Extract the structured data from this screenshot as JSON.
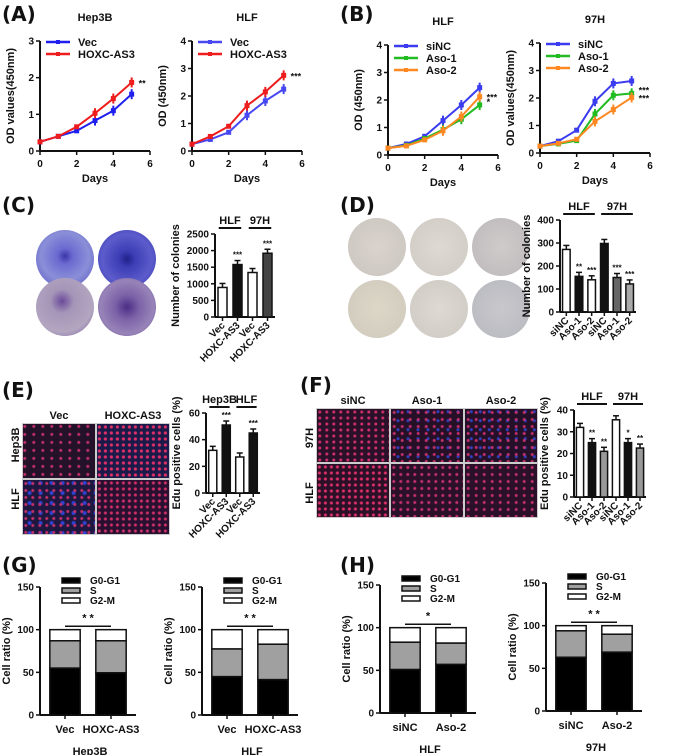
{
  "panels": {
    "A": "(A)",
    "B": "(B)",
    "C": "(C)",
    "D": "(D)",
    "E": "(E)",
    "F": "(F)",
    "G": "(G)",
    "H": "(H)"
  },
  "images": {
    "C": {
      "description": "crystal violet colony plates",
      "rows": 2,
      "cols": 2
    },
    "D": {
      "description": "colony plates",
      "rows": 2,
      "cols": 3
    },
    "E": {
      "col_labels": [
        "Vec",
        "HOXC-AS3"
      ],
      "row_labels": [
        "Hep3B",
        "HLF"
      ]
    },
    "F": {
      "col_labels": [
        "siNC",
        "Aso-1",
        "Aso-2"
      ],
      "row_labels": [
        "97H",
        "HLF"
      ]
    }
  },
  "chart_data": [
    {
      "id": "A1",
      "type": "line",
      "title": "Hep3B",
      "xlabel": "Days",
      "ylabel": "OD values(450nm)",
      "xlim": [
        0,
        6
      ],
      "ylim": [
        0,
        3
      ],
      "xticks": [
        0,
        2,
        4,
        6
      ],
      "yticks": [
        0,
        1,
        2,
        3
      ],
      "x": [
        0,
        1,
        2,
        3,
        4,
        5
      ],
      "series": [
        {
          "name": "Vec",
          "color": "#1f1fef",
          "values": [
            0.25,
            0.4,
            0.55,
            0.83,
            1.1,
            1.55
          ]
        },
        {
          "name": "HOXC-AS3",
          "color": "#ee1c1c",
          "values": [
            0.25,
            0.4,
            0.66,
            1.03,
            1.43,
            1.87
          ]
        }
      ],
      "annotations": [
        "**"
      ],
      "legend": "top-left"
    },
    {
      "id": "A2",
      "type": "line",
      "title": "HLF",
      "xlabel": "Days",
      "ylabel": "OD (450nm)",
      "xlim": [
        0,
        6
      ],
      "ylim": [
        0,
        4
      ],
      "xticks": [
        0,
        2,
        4,
        6
      ],
      "yticks": [
        0,
        1,
        2,
        3,
        4
      ],
      "x": [
        0,
        1,
        2,
        3,
        4,
        5
      ],
      "series": [
        {
          "name": "Vec",
          "color": "#4848f2",
          "values": [
            0.25,
            0.42,
            0.68,
            1.3,
            1.82,
            2.25
          ]
        },
        {
          "name": "HOXC-AS3",
          "color": "#ee1c1c",
          "values": [
            0.25,
            0.53,
            0.9,
            1.65,
            2.15,
            2.75
          ]
        }
      ],
      "annotations": [
        "***"
      ],
      "legend": "top-left"
    },
    {
      "id": "B1",
      "type": "line",
      "title": "HLF",
      "xlabel": "Days",
      "ylabel": "OD (450nm)",
      "xlim": [
        0,
        6
      ],
      "ylim": [
        0,
        4
      ],
      "xticks": [
        0,
        2,
        4,
        6
      ],
      "yticks": [
        0,
        1,
        2,
        3,
        4
      ],
      "x": [
        0,
        1,
        2,
        3,
        4,
        5
      ],
      "series": [
        {
          "name": "siNC",
          "color": "#3b3bf0",
          "values": [
            0.25,
            0.4,
            0.68,
            1.25,
            1.82,
            2.45
          ]
        },
        {
          "name": "Aso-1",
          "color": "#22bb22",
          "values": [
            0.25,
            0.35,
            0.6,
            0.92,
            1.3,
            1.82
          ]
        },
        {
          "name": "Aso-2",
          "color": "#ff8822",
          "values": [
            0.25,
            0.33,
            0.55,
            0.88,
            1.4,
            2.12
          ]
        }
      ],
      "annotations": [
        "*",
        "***"
      ],
      "legend": "top-left"
    },
    {
      "id": "B2",
      "type": "line",
      "title": "97H",
      "xlabel": "Days",
      "ylabel": "OD values(450nm)",
      "xlim": [
        0,
        6
      ],
      "ylim": [
        0,
        4
      ],
      "xticks": [
        0,
        2,
        4,
        6
      ],
      "yticks": [
        0,
        1,
        2,
        3,
        4
      ],
      "x": [
        0,
        1,
        2,
        3,
        4,
        5
      ],
      "series": [
        {
          "name": "siNC",
          "color": "#3b3bf0",
          "values": [
            0.25,
            0.43,
            0.83,
            1.88,
            2.53,
            2.62
          ]
        },
        {
          "name": "Aso-1",
          "color": "#22bb22",
          "values": [
            0.25,
            0.33,
            0.45,
            1.42,
            2.1,
            2.17
          ]
        },
        {
          "name": "Aso-2",
          "color": "#ff8822",
          "values": [
            0.25,
            0.35,
            0.5,
            1.15,
            1.58,
            2.02
          ]
        }
      ],
      "annotations": [
        "***",
        "***"
      ],
      "legend": "top-left"
    },
    {
      "id": "C",
      "type": "bar",
      "ylabel": "Number of colonies",
      "ylim": [
        0,
        2500
      ],
      "yticks": [
        0,
        500,
        1000,
        1500,
        2000,
        2500
      ],
      "groups": [
        "HLF",
        "97H"
      ],
      "categories": [
        "Vec",
        "HOXC-AS3",
        "Vec",
        "HOXC-AS3"
      ],
      "values": [
        890,
        1580,
        1340,
        1920
      ],
      "fills": [
        "#ffffff",
        "#111111",
        "#ffffff",
        "#444444"
      ],
      "annotations": [
        "",
        "***",
        "",
        "***"
      ]
    },
    {
      "id": "D",
      "type": "bar",
      "ylabel": "Number of colonies",
      "ylim": [
        0,
        400
      ],
      "yticks": [
        0,
        100,
        200,
        300,
        400
      ],
      "groups": [
        "HLF",
        "97H"
      ],
      "categories": [
        "siNC",
        "Aso-1",
        "Aso-2",
        "siNC",
        "Aso-1",
        "Aso-2"
      ],
      "values": [
        272,
        155,
        140,
        298,
        150,
        122
      ],
      "fills": [
        "#ffffff",
        "#111111",
        "#ffffff",
        "#111111",
        "#666666",
        "#aaaaaa"
      ],
      "annotations": [
        "",
        "**",
        "***",
        "",
        "***",
        "***"
      ]
    },
    {
      "id": "E",
      "type": "bar",
      "ylabel": "Edu positive cells (%)",
      "ylim": [
        0,
        60
      ],
      "yticks": [
        0,
        20,
        40,
        60
      ],
      "groups": [
        "Hep3B",
        "HLF"
      ],
      "categories": [
        "Vec",
        "HOXC-AS3",
        "Vec",
        "HOXC-AS3"
      ],
      "values": [
        32,
        51,
        27,
        45
      ],
      "fills": [
        "#ffffff",
        "#111111",
        "#ffffff",
        "#111111"
      ],
      "annotations": [
        "",
        "***",
        "",
        "***"
      ]
    },
    {
      "id": "F",
      "type": "bar",
      "ylabel": "Edu positive cells (%)",
      "ylim": [
        0,
        40
      ],
      "yticks": [
        0,
        10,
        20,
        30,
        40
      ],
      "groups": [
        "HLF",
        "97H"
      ],
      "categories": [
        "siNC",
        "Aso-1",
        "Aso-2",
        "siNC",
        "Aso-1",
        "Aso-2"
      ],
      "values": [
        32,
        25,
        21,
        35.5,
        25,
        22.5
      ],
      "fills": [
        "#ffffff",
        "#111111",
        "#999999",
        "#ffffff",
        "#111111",
        "#999999"
      ],
      "annotations": [
        "",
        "**",
        "**",
        "",
        "*",
        "**"
      ]
    },
    {
      "id": "G1",
      "type": "bar",
      "stacked": true,
      "xlabel": "Hep3B",
      "ylabel": "Cell ratio (%)",
      "ylim": [
        0,
        150
      ],
      "yticks": [
        0,
        50,
        100,
        150
      ],
      "categories": [
        "Vec",
        "HOXC-AS3"
      ],
      "series": [
        {
          "name": "G0-G1",
          "color": "#000000",
          "values": [
            55,
            49.5
          ]
        },
        {
          "name": "S",
          "color": "#a0a0a0",
          "values": [
            32,
            37.5
          ]
        },
        {
          "name": "G2-M",
          "color": "#ffffff",
          "values": [
            13,
            13
          ]
        }
      ],
      "annotations": [
        "**"
      ],
      "legend": "top"
    },
    {
      "id": "G2",
      "type": "bar",
      "stacked": true,
      "xlabel": "HLF",
      "ylabel": "Cell ratio (%)",
      "ylim": [
        0,
        150
      ],
      "yticks": [
        0,
        50,
        100,
        150
      ],
      "categories": [
        "Vec",
        "HOXC-AS3"
      ],
      "series": [
        {
          "name": "G0-G1",
          "color": "#000000",
          "values": [
            45,
            41.5
          ]
        },
        {
          "name": "S",
          "color": "#a0a0a0",
          "values": [
            32.5,
            41.5
          ]
        },
        {
          "name": "G2-M",
          "color": "#ffffff",
          "values": [
            22.5,
            17
          ]
        }
      ],
      "annotations": [
        "**"
      ],
      "legend": "top"
    },
    {
      "id": "H1",
      "type": "bar",
      "stacked": true,
      "xlabel": "HLF",
      "ylabel": "Cell ratio (%)",
      "ylim": [
        0,
        150
      ],
      "yticks": [
        0,
        50,
        100,
        150
      ],
      "categories": [
        "siNC",
        "Aso-2"
      ],
      "series": [
        {
          "name": "G0-G1",
          "color": "#000000",
          "values": [
            51,
            57
          ]
        },
        {
          "name": "S",
          "color": "#a0a0a0",
          "values": [
            32,
            25
          ]
        },
        {
          "name": "G2-M",
          "color": "#ffffff",
          "values": [
            17,
            18
          ]
        }
      ],
      "annotations": [
        "*"
      ],
      "legend": "top"
    },
    {
      "id": "H2",
      "type": "bar",
      "stacked": true,
      "xlabel": "97H",
      "ylabel": "Cell ratio (%)",
      "ylim": [
        0,
        150
      ],
      "yticks": [
        0,
        50,
        100,
        150
      ],
      "categories": [
        "siNC",
        "Aso-2"
      ],
      "series": [
        {
          "name": "G0-G1",
          "color": "#000000",
          "values": [
            63,
            69
          ]
        },
        {
          "name": "S",
          "color": "#a0a0a0",
          "values": [
            31,
            21
          ]
        },
        {
          "name": "G2-M",
          "color": "#ffffff",
          "values": [
            6,
            10
          ]
        }
      ],
      "annotations": [
        "**"
      ],
      "legend": "top"
    }
  ]
}
